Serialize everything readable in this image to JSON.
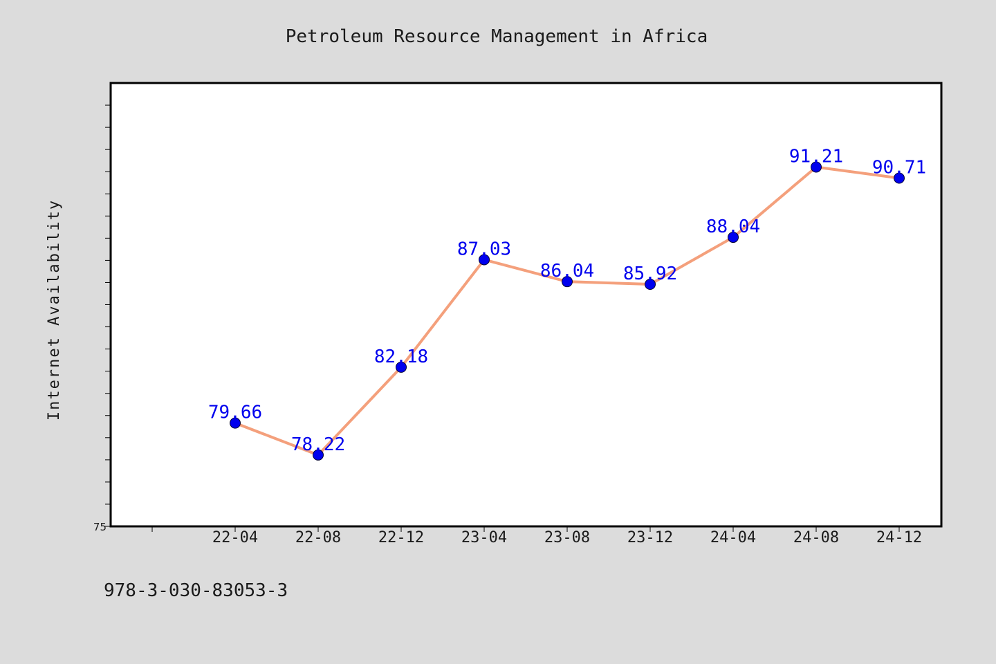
{
  "chart_data": {
    "type": "line",
    "title": "Petroleum Resource Management in Africa",
    "ylabel": "Internet Availability",
    "xlabel": "",
    "x": [
      "22-04",
      "22-08",
      "22-12",
      "23-04",
      "23-08",
      "23-12",
      "24-04",
      "24-08",
      "24-12"
    ],
    "series": [
      {
        "values": [
          79.66,
          78.22,
          82.18,
          87.03,
          86.04,
          85.92,
          88.04,
          91.21,
          90.71
        ]
      }
    ],
    "data_labels": [
      "79.66",
      "78.22",
      "82.18",
      "87.03",
      "86.04",
      "85.92",
      "88.04",
      "91.21",
      "90.71"
    ],
    "y_tick_labels": [
      "75"
    ],
    "ylim": [
      75,
      95
    ],
    "grid": false,
    "legend": "none",
    "colors": {
      "line": "#f4a07c",
      "marker": "#0000ee",
      "label": "#0000ee",
      "background": "#dcdcdc",
      "plot_background": "#ffffff"
    }
  },
  "footer_text": "978-3-030-83053-3"
}
